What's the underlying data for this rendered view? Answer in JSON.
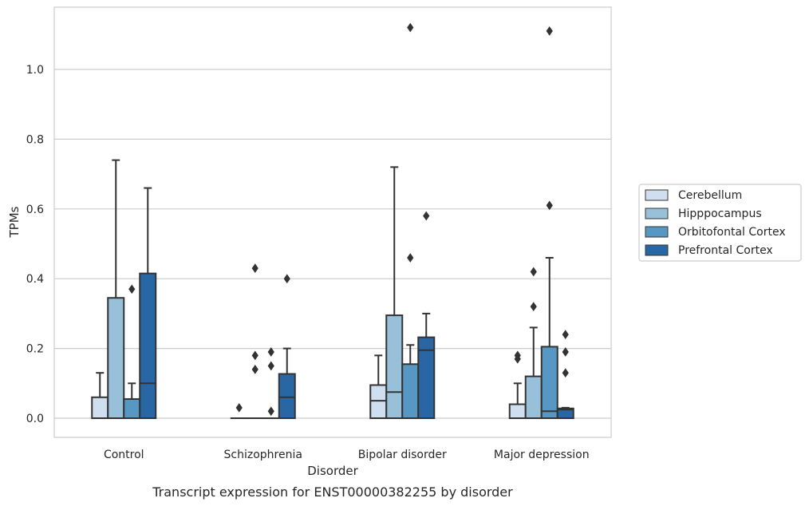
{
  "chart_data": {
    "type": "box",
    "xlabel": "Disorder",
    "ylabel": "TPMs",
    "caption": "Transcript expression for ENST00000382255 by disorder",
    "ylim": [
      -0.055,
      1.18
    ],
    "yticks": [
      "0.0",
      "0.2",
      "0.4",
      "0.6",
      "0.8",
      "1.0"
    ],
    "grid": "horizontal",
    "legend_position": "right",
    "categories": [
      "Control",
      "Schizophrenia",
      "Bipolar disorder",
      "Major depression"
    ],
    "series": [
      {
        "name": "Cerebellum",
        "color": "#cfdfef",
        "boxes": [
          {
            "min": 0.0,
            "q1": 0.0,
            "median": 0.0,
            "q3": 0.06,
            "max": 0.13,
            "outliers": []
          },
          {
            "min": 0.0,
            "q1": 0.0,
            "median": 0.0,
            "q3": 0.0,
            "max": 0.0,
            "outliers": [
              0.03
            ]
          },
          {
            "min": 0.0,
            "q1": 0.0,
            "median": 0.05,
            "q3": 0.095,
            "max": 0.18,
            "outliers": []
          },
          {
            "min": 0.0,
            "q1": 0.0,
            "median": 0.0,
            "q3": 0.04,
            "max": 0.1,
            "outliers": [
              0.17,
              0.18
            ]
          }
        ]
      },
      {
        "name": "Hipppocampus",
        "color": "#98c0d9",
        "boxes": [
          {
            "min": 0.0,
            "q1": 0.0,
            "median": 0.0,
            "q3": 0.345,
            "max": 0.74,
            "outliers": []
          },
          {
            "min": 0.0,
            "q1": 0.0,
            "median": 0.0,
            "q3": 0.0,
            "max": 0.0,
            "outliers": [
              0.14,
              0.18,
              0.43
            ]
          },
          {
            "min": 0.0,
            "q1": 0.0,
            "median": 0.075,
            "q3": 0.295,
            "max": 0.72,
            "outliers": []
          },
          {
            "min": 0.0,
            "q1": 0.0,
            "median": 0.0,
            "q3": 0.12,
            "max": 0.26,
            "outliers": [
              0.32,
              0.42
            ]
          }
        ]
      },
      {
        "name": "Orbitofontal Cortex",
        "color": "#5697c4",
        "boxes": [
          {
            "min": 0.0,
            "q1": 0.0,
            "median": 0.0,
            "q3": 0.055,
            "max": 0.1,
            "outliers": [
              0.37
            ]
          },
          {
            "min": 0.0,
            "q1": 0.0,
            "median": 0.0,
            "q3": 0.0,
            "max": 0.0,
            "outliers": [
              0.02,
              0.15,
              0.19
            ]
          },
          {
            "min": 0.0,
            "q1": 0.0,
            "median": 0.0,
            "q3": 0.155,
            "max": 0.21,
            "outliers": [
              0.46,
              1.12
            ]
          },
          {
            "min": 0.0,
            "q1": 0.0,
            "median": 0.02,
            "q3": 0.205,
            "max": 0.46,
            "outliers": [
              0.61,
              1.11
            ]
          }
        ]
      },
      {
        "name": "Prefrontal Cortex",
        "color": "#2867a3",
        "boxes": [
          {
            "min": 0.0,
            "q1": 0.0,
            "median": 0.1,
            "q3": 0.415,
            "max": 0.66,
            "outliers": []
          },
          {
            "min": 0.0,
            "q1": 0.0,
            "median": 0.06,
            "q3": 0.127,
            "max": 0.2,
            "outliers": [
              0.4
            ]
          },
          {
            "min": 0.0,
            "q1": 0.0,
            "median": 0.195,
            "q3": 0.232,
            "max": 0.3,
            "outliers": [
              0.58
            ]
          },
          {
            "min": 0.0,
            "q1": 0.0,
            "median": 0.025,
            "q3": 0.028,
            "max": 0.03,
            "outliers": [
              0.13,
              0.19,
              0.24
            ]
          }
        ]
      }
    ]
  }
}
